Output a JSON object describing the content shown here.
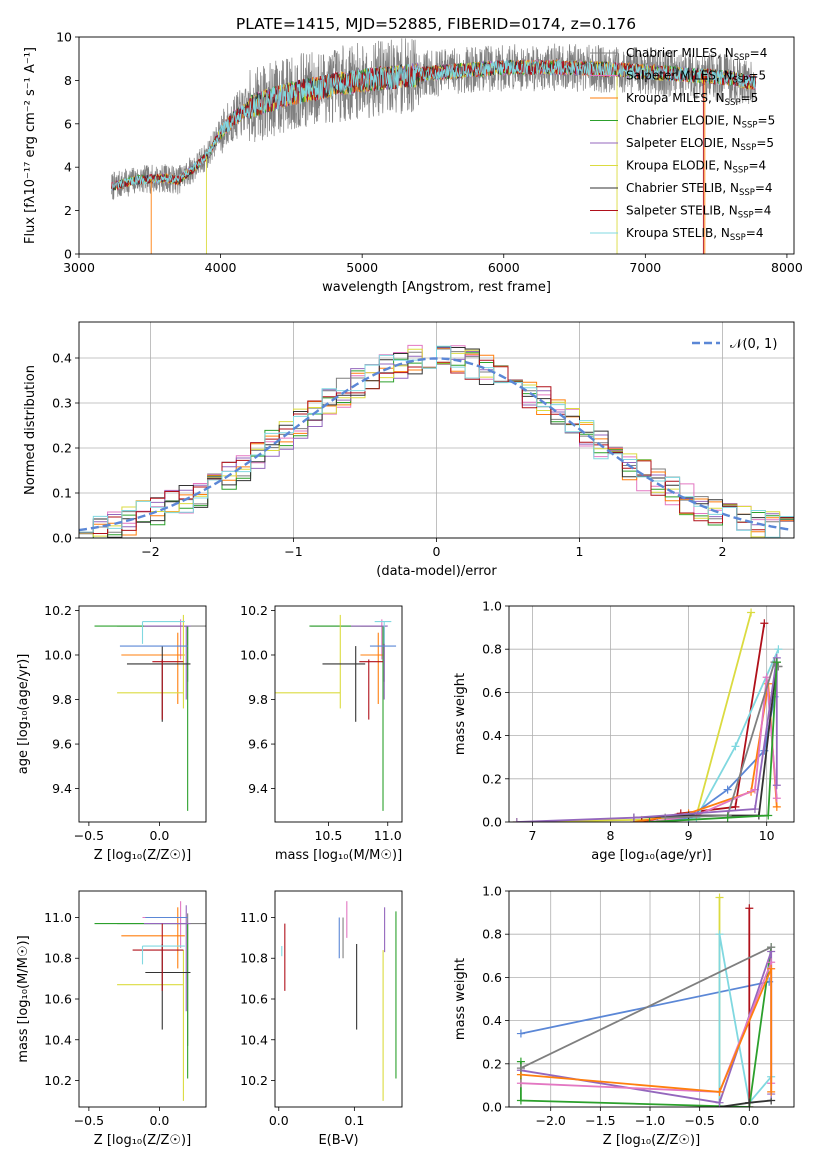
{
  "figure_title": "PLATE=1415, MJD=52885, FIBERID=0174, z=0.176",
  "colors": {
    "Chabrier MILES": "#7f7f7f",
    "Salpeter MILES": "#e377c2",
    "Kroupa MILES": "#ff7f0e",
    "Chabrier ELODIE": "#2ca02c",
    "Salpeter ELODIE": "#9467bd",
    "Kroupa ELODIE": "#dbdb40",
    "Chabrier STELIB": "#333333",
    "Salpeter STELIB": "#b0101a",
    "Kroupa STELIB": "#80d8e0",
    "normal": "#5b87d6"
  },
  "models": [
    {
      "name": "Chabrier MILES",
      "nssp": "4"
    },
    {
      "name": "Salpeter MILES",
      "nssp": "5"
    },
    {
      "name": "Kroupa MILES",
      "nssp": "5"
    },
    {
      "name": "Chabrier ELODIE",
      "nssp": "5"
    },
    {
      "name": "Salpeter ELODIE",
      "nssp": "5"
    },
    {
      "name": "Kroupa ELODIE",
      "nssp": "4"
    },
    {
      "name": "Chabrier STELIB",
      "nssp": "4"
    },
    {
      "name": "Salpeter STELIB",
      "nssp": "4"
    },
    {
      "name": "Kroupa STELIB",
      "nssp": "4"
    }
  ],
  "chart_data": [
    {
      "id": "spectrum",
      "type": "line",
      "title": "PLATE=1415, MJD=52885, FIBERID=0174, z=0.176",
      "xlabel": "wavelength [Angstrom, rest frame]",
      "ylabel": "Flux [fλ10⁻¹⁷ erg cm⁻² s⁻¹ A⁻¹]",
      "xlim": [
        3000,
        8050
      ],
      "ylim": [
        0,
        10
      ],
      "xticks": [
        3000,
        4000,
        5000,
        6000,
        7000,
        8000
      ],
      "yticks": [
        0,
        2,
        4,
        6,
        8,
        10
      ],
      "grid": false,
      "legend": "right",
      "continuum": {
        "x": [
          3230,
          3400,
          3600,
          3700,
          3800,
          3900,
          4000,
          4100,
          4250,
          4500,
          4800,
          5000,
          5300,
          5600,
          6000,
          6400,
          6800,
          7200,
          7600,
          7750
        ],
        "y": [
          3.1,
          3.4,
          3.5,
          3.4,
          3.9,
          4.5,
          5.6,
          6.3,
          6.9,
          7.4,
          7.8,
          8.0,
          8.2,
          8.4,
          8.6,
          8.6,
          8.5,
          8.3,
          8.1,
          7.9
        ]
      }
    },
    {
      "id": "residuals",
      "type": "histogram",
      "xlabel": "(data-model)/error",
      "ylabel": "Normed distribution",
      "xlim": [
        -2.5,
        2.5
      ],
      "ylim": [
        0,
        0.48
      ],
      "xticks": [
        -2,
        -1,
        0,
        1,
        2
      ],
      "yticks": [
        0.0,
        0.1,
        0.2,
        0.3,
        0.4
      ],
      "grid": true,
      "legend": "top-right",
      "legend_label": "𝒩(0, 1)",
      "bin_width": 0.1
    },
    {
      "id": "age-vs-Z",
      "type": "scatter",
      "xlabel": "Z [log₁₀(Z/Z☉)]",
      "ylabel": "age  [log₁₀(age/yr)]",
      "xlim": [
        -0.57,
        0.33
      ],
      "ylim": [
        9.25,
        10.22
      ],
      "xticks": [
        -0.5,
        0.0,
        0.5
      ],
      "yticks": [
        9.4,
        9.6,
        9.8,
        10.0,
        10.2
      ],
      "points": [
        {
          "model": "Chabrier MILES",
          "x": 0.2,
          "y": 10.13,
          "xerr": [
            0.5,
            0.2
          ],
          "yerr": [
            0.25,
            0.0
          ]
        },
        {
          "model": "Salpeter MILES",
          "x": 0.15,
          "y": 10.13,
          "xerr": [
            0.28,
            0.0
          ],
          "yerr": [
            0.15,
            0.03
          ]
        },
        {
          "model": "Kroupa MILES",
          "x": 0.13,
          "y": 10.0,
          "xerr": [
            0.4,
            0.05
          ],
          "yerr": [
            0.22,
            0.1
          ]
        },
        {
          "model": "Chabrier ELODIE",
          "x": 0.2,
          "y": 10.13,
          "xerr": [
            0.66,
            0.0
          ],
          "yerr": [
            0.83,
            0.0
          ]
        },
        {
          "model": "Salpeter ELODIE",
          "x": 0.19,
          "y": 10.13,
          "xerr": [
            0.3,
            0.03
          ],
          "yerr": [
            0.33,
            0.0
          ]
        },
        {
          "model": "Kroupa ELODIE",
          "x": 0.17,
          "y": 9.83,
          "xerr": [
            0.47,
            0.0
          ],
          "yerr": [
            0.07,
            0.35
          ]
        },
        {
          "model": "Chabrier STELIB",
          "x": 0.02,
          "y": 9.96,
          "xerr": [
            0.25,
            0.2
          ],
          "yerr": [
            0.26,
            0.08
          ]
        },
        {
          "model": "Salpeter STELIB",
          "x": 0.02,
          "y": 9.97,
          "xerr": [
            0.07,
            0.15
          ],
          "yerr": [
            0.26,
            0.01
          ]
        },
        {
          "model": "Kroupa STELIB",
          "x": -0.12,
          "y": 10.15,
          "xerr": [
            0.0,
            0.3
          ],
          "yerr": [
            0.1,
            0.0
          ]
        },
        {
          "model": "normal",
          "x": 0.2,
          "y": 10.04,
          "xerr": [
            0.48,
            0.0
          ],
          "yerr": [
            0.0,
            0.0
          ]
        }
      ]
    },
    {
      "id": "age-vs-mass",
      "type": "scatter",
      "xlabel": "mass [log₁₀(M/M☉)]",
      "ylabel": "",
      "xlim": [
        10.05,
        11.12
      ],
      "ylim": [
        9.25,
        10.22
      ],
      "xticks": [
        10.5,
        11.0
      ],
      "yticks": [
        9.4,
        9.6,
        9.8,
        10.0,
        10.2
      ],
      "points": [
        {
          "model": "Chabrier MILES",
          "x": 10.97,
          "y": 10.13,
          "xerr": [
            0.62,
            0.02
          ],
          "yerr": [
            0.25,
            0.0
          ]
        },
        {
          "model": "Salpeter MILES",
          "x": 10.95,
          "y": 10.13,
          "xerr": [
            0.18,
            0.0
          ],
          "yerr": [
            0.15,
            0.03
          ]
        },
        {
          "model": "Kroupa MILES",
          "x": 10.92,
          "y": 10.0,
          "xerr": [
            0.15,
            0.05
          ],
          "yerr": [
            0.22,
            0.1
          ]
        },
        {
          "model": "Chabrier ELODIE",
          "x": 10.96,
          "y": 10.13,
          "xerr": [
            0.62,
            0.0
          ],
          "yerr": [
            0.83,
            0.0
          ]
        },
        {
          "model": "Salpeter ELODIE",
          "x": 10.97,
          "y": 10.13,
          "xerr": [
            0.28,
            0.03
          ],
          "yerr": [
            0.33,
            0.0
          ]
        },
        {
          "model": "Kroupa ELODIE",
          "x": 10.6,
          "y": 9.83,
          "xerr": [
            0.55,
            0.0
          ],
          "yerr": [
            0.07,
            0.35
          ]
        },
        {
          "model": "Chabrier STELIB",
          "x": 10.73,
          "y": 9.96,
          "xerr": [
            0.28,
            0.08
          ],
          "yerr": [
            0.26,
            0.08
          ]
        },
        {
          "model": "Salpeter STELIB",
          "x": 10.84,
          "y": 9.97,
          "xerr": [
            0.08,
            0.12
          ],
          "yerr": [
            0.26,
            0.01
          ]
        },
        {
          "model": "Kroupa STELIB",
          "x": 10.97,
          "y": 10.15,
          "xerr": [
            0.08,
            0.06
          ],
          "yerr": [
            0.1,
            0.0
          ]
        },
        {
          "model": "normal",
          "x": 10.97,
          "y": 10.04,
          "xerr": [
            0.12,
            0.1
          ],
          "yerr": [
            0.0,
            0.0
          ]
        }
      ]
    },
    {
      "id": "mass-weight-vs-age",
      "type": "line",
      "xlabel": "age  [log₁₀(age/yr)]",
      "ylabel": "mass weight",
      "xlim": [
        6.7,
        10.35
      ],
      "ylim": [
        0,
        1
      ],
      "xticks": [
        7,
        8,
        9,
        10
      ],
      "yticks": [
        0.0,
        0.2,
        0.4,
        0.6,
        0.8,
        1.0
      ],
      "grid": true,
      "series": [
        {
          "model": "Kroupa ELODIE",
          "x": [
            6.8,
            8.4,
            9.1,
            9.8
          ],
          "y": [
            0.0,
            0.01,
            0.03,
            0.97
          ]
        },
        {
          "model": "Salpeter STELIB",
          "x": [
            8.4,
            8.9,
            9.6,
            9.97
          ],
          "y": [
            0.0,
            0.04,
            0.07,
            0.92
          ]
        },
        {
          "model": "Kroupa STELIB",
          "x": [
            8.7,
            9.1,
            9.6,
            10.15
          ],
          "y": [
            0.0,
            0.02,
            0.35,
            0.8
          ]
        },
        {
          "model": "normal",
          "x": [
            8.6,
            9.0,
            9.5,
            9.97,
            10.1
          ],
          "y": [
            0.0,
            0.02,
            0.15,
            0.33,
            0.58
          ]
        },
        {
          "model": "Kroupa MILES",
          "x": [
            8.3,
            9.0,
            9.8,
            10.02,
            10.13
          ],
          "y": [
            0.0,
            0.04,
            0.14,
            0.64,
            0.07
          ]
        },
        {
          "model": "Salpeter MILES",
          "x": [
            8.5,
            9.1,
            9.85,
            10.0,
            10.13
          ],
          "y": [
            0.0,
            0.03,
            0.15,
            0.67,
            0.11
          ]
        },
        {
          "model": "Chabrier STELIB",
          "x": [
            8.3,
            9.0,
            9.9,
            10.13,
            10.15
          ],
          "y": [
            0.02,
            0.03,
            0.03,
            0.74,
            0.72
          ]
        },
        {
          "model": "Chabrier MILES",
          "x": [
            8.7,
            9.5,
            10.1,
            10.15
          ],
          "y": [
            0.02,
            0.03,
            0.74,
            0.72
          ]
        },
        {
          "model": "Salpeter ELODIE",
          "x": [
            6.8,
            8.3,
            9.85,
            10.13,
            10.13
          ],
          "y": [
            0.0,
            0.02,
            0.06,
            0.76,
            0.17
          ]
        },
        {
          "model": "Chabrier ELODIE",
          "x": [
            8.5,
            9.5,
            10.02,
            10.13
          ],
          "y": [
            0.0,
            0.02,
            0.03,
            0.74
          ]
        }
      ]
    },
    {
      "id": "mass-vs-Z",
      "type": "scatter",
      "xlabel": "Z [log₁₀(Z/Z☉)]",
      "ylabel": "mass [log₁₀(M/M☉)]",
      "xlim": [
        -0.57,
        0.33
      ],
      "ylim": [
        10.07,
        11.13
      ],
      "xticks": [
        -0.5,
        0.0,
        0.5
      ],
      "yticks": [
        10.2,
        10.4,
        10.6,
        10.8,
        11.0
      ],
      "points": [
        {
          "model": "Chabrier MILES",
          "x": 0.2,
          "y": 10.97,
          "xerr": [
            0.5,
            0.2
          ],
          "yerr": [
            0.6,
            0.05
          ]
        },
        {
          "model": "Salpeter MILES",
          "x": 0.15,
          "y": 11.0,
          "xerr": [
            0.27,
            0.0
          ],
          "yerr": [
            0.15,
            0.08
          ]
        },
        {
          "model": "Kroupa MILES",
          "x": 0.13,
          "y": 10.91,
          "xerr": [
            0.4,
            0.05
          ],
          "yerr": [
            0.16,
            0.14
          ]
        },
        {
          "model": "Chabrier ELODIE",
          "x": 0.2,
          "y": 10.97,
          "xerr": [
            0.66,
            0.0
          ],
          "yerr": [
            0.76,
            0.0
          ]
        },
        {
          "model": "Salpeter ELODIE",
          "x": 0.19,
          "y": 10.97,
          "xerr": [
            0.3,
            0.03
          ],
          "yerr": [
            0.43,
            0.09
          ]
        },
        {
          "model": "Kroupa ELODIE",
          "x": 0.17,
          "y": 10.67,
          "xerr": [
            0.47,
            0.0
          ],
          "yerr": [
            0.57,
            0.17
          ]
        },
        {
          "model": "Chabrier STELIB",
          "x": 0.02,
          "y": 10.73,
          "xerr": [
            0.12,
            0.2
          ],
          "yerr": [
            0.28,
            0.14
          ]
        },
        {
          "model": "Salpeter STELIB",
          "x": 0.02,
          "y": 10.84,
          "xerr": [
            0.21,
            0.15
          ],
          "yerr": [
            0.2,
            0.13
          ]
        },
        {
          "model": "Kroupa STELIB",
          "x": -0.12,
          "y": 10.86,
          "xerr": [
            0.0,
            0.3
          ],
          "yerr": [
            0.09,
            0.0
          ]
        },
        {
          "model": "normal",
          "x": 0.2,
          "y": 11.0,
          "xerr": [
            0.3,
            0.0
          ],
          "yerr": [
            0.0,
            0.0
          ]
        }
      ]
    },
    {
      "id": "mass-vs-ebv",
      "type": "scatter",
      "xlabel": "E(B-V)",
      "ylabel": "",
      "xlim": [
        -0.005,
        0.163
      ],
      "ylim": [
        10.07,
        11.13
      ],
      "xticks": [
        0.0,
        0.1
      ],
      "yticks": [
        10.2,
        10.4,
        10.6,
        10.8,
        11.0
      ],
      "points": [
        {
          "model": "Salpeter STELIB",
          "x": 0.008,
          "y": 10.84,
          "yerr": [
            0.2,
            0.13
          ]
        },
        {
          "model": "Kroupa STELIB",
          "x": 0.004,
          "y": 10.86,
          "yerr": [
            0.05,
            0.0
          ]
        },
        {
          "model": "normal",
          "x": 0.08,
          "y": 11.0,
          "yerr": [
            0.2,
            0.0
          ]
        },
        {
          "model": "Chabrier MILES",
          "x": 0.085,
          "y": 10.85,
          "yerr": [
            0.05,
            0.15
          ]
        },
        {
          "model": "Salpeter MILES",
          "x": 0.09,
          "y": 11.0,
          "yerr": [
            0.1,
            0.08
          ]
        },
        {
          "model": "Chabrier STELIB",
          "x": 0.103,
          "y": 10.73,
          "yerr": [
            0.28,
            0.14
          ]
        },
        {
          "model": "Salpeter ELODIE",
          "x": 0.14,
          "y": 10.97,
          "yerr": [
            0.14,
            0.08
          ]
        },
        {
          "model": "Kroupa ELODIE",
          "x": 0.138,
          "y": 10.67,
          "yerr": [
            0.57,
            0.17
          ]
        },
        {
          "model": "Chabrier ELODIE",
          "x": 0.155,
          "y": 10.97,
          "yerr": [
            0.76,
            0.06
          ]
        }
      ]
    },
    {
      "id": "mass-weight-vs-Z",
      "type": "line",
      "xlabel": "Z [log₁₀(Z/Z☉)]",
      "ylabel": "mass weight",
      "xlim": [
        -2.42,
        0.45
      ],
      "ylim": [
        0,
        1
      ],
      "xticks": [
        -2.0,
        -1.5,
        -1.0,
        -0.5,
        0.0
      ],
      "yticks": [
        0.0,
        0.2,
        0.4,
        0.6,
        0.8,
        1.0
      ],
      "grid": true,
      "series": [
        {
          "model": "normal",
          "x": [
            -2.3,
            0.2
          ],
          "y": [
            0.34,
            0.58
          ]
        },
        {
          "model": "Kroupa ELODIE",
          "x": [
            -0.3,
            -0.3
          ],
          "y": [
            0.0,
            0.97
          ]
        },
        {
          "model": "Kroupa STELIB",
          "x": [
            -0.3,
            -0.3,
            0.0,
            0.22
          ],
          "y": [
            0.0,
            0.8,
            0.02,
            0.14
          ]
        },
        {
          "model": "Salpeter STELIB",
          "x": [
            0.0,
            0.0
          ],
          "y": [
            0.0,
            0.92
          ]
        },
        {
          "model": "Chabrier ELODIE",
          "x": [
            -2.3,
            -2.3,
            0.0,
            0.22
          ],
          "y": [
            0.21,
            0.03,
            0.0,
            0.74
          ]
        },
        {
          "model": "Chabrier STELIB",
          "x": [
            -0.3,
            0.0,
            0.22
          ],
          "y": [
            0.0,
            0.02,
            0.03
          ]
        },
        {
          "model": "Salpeter ELODIE",
          "x": [
            -2.3,
            -0.3,
            0.22,
            0.22
          ],
          "y": [
            0.17,
            0.02,
            0.72,
            0.06
          ]
        },
        {
          "model": "Salpeter MILES",
          "x": [
            -2.3,
            -0.3,
            0.22,
            0.22
          ],
          "y": [
            0.11,
            0.07,
            0.67,
            0.11
          ]
        },
        {
          "model": "Kroupa MILES",
          "x": [
            -2.3,
            -0.3,
            0.22,
            0.22
          ],
          "y": [
            0.15,
            0.07,
            0.64,
            0.07
          ]
        },
        {
          "model": "Chabrier MILES",
          "x": [
            -2.3,
            0.22
          ],
          "y": [
            0.18,
            0.74
          ]
        }
      ]
    }
  ]
}
